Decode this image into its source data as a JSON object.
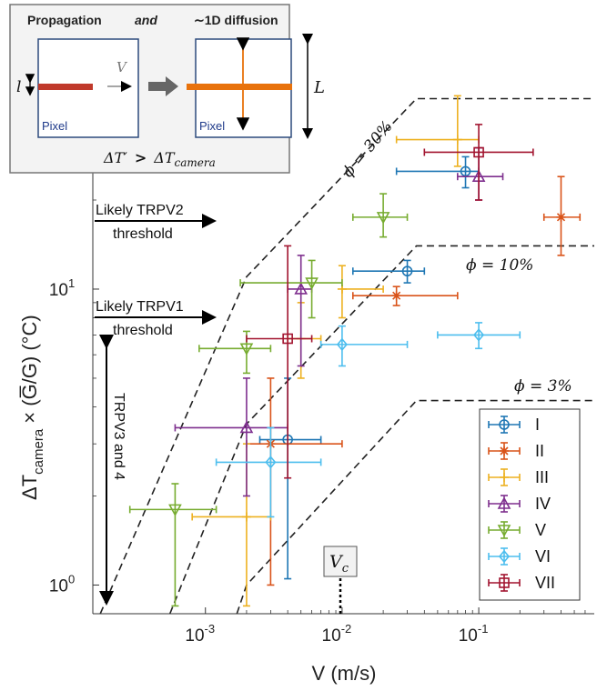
{
  "chart_data": {
    "type": "scatter",
    "x_scale": "log",
    "y_scale": "log",
    "xlim": [
      0.00015,
      0.7
    ],
    "ylim": [
      0.8,
      55
    ],
    "xlabel": "V (m/s)",
    "ylabel_main": "ΔT",
    "ylabel_sub": "camera",
    "ylabel_rest": " × (G̅/G) (°C)",
    "x_ticks": [
      {
        "value": 0.001,
        "label": "10",
        "exp": "-3"
      },
      {
        "value": 0.01,
        "label": "10",
        "exp": "-2"
      },
      {
        "value": 0.1,
        "label": "10",
        "exp": "-1"
      }
    ],
    "y_ticks": [
      {
        "value": 1,
        "label": "10",
        "exp": "0"
      },
      {
        "value": 10,
        "label": "10",
        "exp": "1"
      }
    ],
    "legend_position": "bottom-right",
    "series": [
      {
        "name": "I",
        "color": "#1f77b4",
        "marker": "circle",
        "points": [
          {
            "x": 0.004,
            "y": 3.1,
            "xerr": [
              0.0025,
              0.007
            ],
            "yerr": [
              1.05,
              5.0
            ]
          },
          {
            "x": 0.03,
            "y": 11.5,
            "xerr": [
              0.012,
              0.04
            ],
            "yerr": [
              10.5,
              12.5
            ]
          },
          {
            "x": 0.08,
            "y": 25.0,
            "xerr": [
              0.025,
              0.1
            ],
            "yerr": [
              22.0,
              28.0
            ]
          }
        ]
      },
      {
        "name": "II",
        "color": "#d95319",
        "marker": "asterisk",
        "points": [
          {
            "x": 0.003,
            "y": 3.0,
            "xerr": [
              0.002,
              0.01
            ],
            "yerr": [
              1.0,
              5.0
            ]
          },
          {
            "x": 0.025,
            "y": 9.5,
            "xerr": [
              0.012,
              0.07
            ],
            "yerr": [
              8.8,
              10.2
            ]
          },
          {
            "x": 0.4,
            "y": 17.5,
            "xerr": [
              0.3,
              0.55
            ],
            "yerr": [
              13.0,
              24.0
            ]
          }
        ]
      },
      {
        "name": "III",
        "color": "#edb120",
        "marker": "cross",
        "points": [
          {
            "x": 0.002,
            "y": 1.7,
            "xerr": [
              0.0008,
              0.003
            ],
            "yerr": [
              0.85,
              3.0
            ]
          },
          {
            "x": 0.005,
            "y": 6.8,
            "xerr": [
              0.004,
              0.007
            ],
            "yerr": [
              5.0,
              9.0
            ]
          },
          {
            "x": 0.01,
            "y": 10.0,
            "xerr": [
              0.01,
              0.02
            ],
            "yerr": [
              8.0,
              12.0
            ]
          },
          {
            "x": 0.07,
            "y": 32.0,
            "xerr": [
              0.025,
              0.1
            ],
            "yerr": [
              26.0,
              45.0
            ]
          }
        ]
      },
      {
        "name": "IV",
        "color": "#7e2f8e",
        "marker": "triangle-up",
        "points": [
          {
            "x": 0.002,
            "y": 3.4,
            "xerr": [
              0.0006,
              0.004
            ],
            "yerr": [
              2.0,
              5.0
            ]
          },
          {
            "x": 0.005,
            "y": 10.0,
            "xerr": [
              0.004,
              0.006
            ],
            "yerr": [
              5.5,
              13.0
            ]
          },
          {
            "x": 0.1,
            "y": 24.0,
            "xerr": [
              0.07,
              0.15
            ],
            "yerr": [
              20.0,
              30.0
            ]
          }
        ]
      },
      {
        "name": "V",
        "color": "#77ac30",
        "marker": "triangle-down",
        "points": [
          {
            "x": 0.0006,
            "y": 1.8,
            "xerr": [
              0.00028,
              0.0012
            ],
            "yerr": [
              0.85,
              2.2
            ]
          },
          {
            "x": 0.002,
            "y": 6.3,
            "xerr": [
              0.0009,
              0.003
            ],
            "yerr": [
              5.2,
              7.2
            ]
          },
          {
            "x": 0.006,
            "y": 10.5,
            "xerr": [
              0.0018,
              0.01
            ],
            "yerr": [
              8.0,
              12.5
            ]
          },
          {
            "x": 0.02,
            "y": 17.5,
            "xerr": [
              0.012,
              0.03
            ],
            "yerr": [
              15.0,
              21.0
            ]
          }
        ]
      },
      {
        "name": "VI",
        "color": "#4dbeee",
        "marker": "diamond",
        "points": [
          {
            "x": 0.003,
            "y": 2.6,
            "xerr": [
              0.0012,
              0.007
            ],
            "yerr": [
              1.7,
              3.4
            ]
          },
          {
            "x": 0.01,
            "y": 6.5,
            "xerr": [
              0.007,
              0.03
            ],
            "yerr": [
              5.5,
              7.5
            ]
          },
          {
            "x": 0.1,
            "y": 7.0,
            "xerr": [
              0.05,
              0.2
            ],
            "yerr": [
              6.3,
              7.7
            ]
          }
        ]
      },
      {
        "name": "VII",
        "color": "#a2142f",
        "marker": "square",
        "points": [
          {
            "x": 0.004,
            "y": 6.8,
            "xerr": [
              0.002,
              0.006
            ],
            "yerr": [
              2.3,
              14.0
            ]
          },
          {
            "x": 0.1,
            "y": 29.0,
            "xerr": [
              0.04,
              0.25
            ],
            "yerr": [
              20.0,
              36.0
            ]
          }
        ]
      }
    ],
    "threshold_curves": [
      {
        "label": "ϕ = 30%",
        "points": [
          [
            0.00017,
            0.8
          ],
          [
            0.002,
            11.0
          ],
          [
            0.035,
            44.0
          ],
          [
            0.7,
            44.0
          ]
        ]
      },
      {
        "label": "ϕ = 10%",
        "points": [
          [
            0.00055,
            0.8
          ],
          [
            0.002,
            3.5
          ],
          [
            0.035,
            14.0
          ],
          [
            0.7,
            14.0
          ]
        ]
      },
      {
        "label": "ϕ = 3%",
        "points": [
          [
            0.0017,
            0.8
          ],
          [
            0.002,
            1.0
          ],
          [
            0.035,
            4.2
          ],
          [
            0.7,
            4.2
          ]
        ]
      }
    ]
  },
  "annotations": {
    "trpv2": {
      "line1": "Likely TRPV2",
      "line2": "threshold"
    },
    "trpv1": {
      "line1": "Likely TRPV1",
      "line2": "threshold"
    },
    "trpv34": "TRPV3 and 4",
    "vc_main": "V",
    "vc_sub": "c"
  },
  "inset": {
    "title_a": "Propagation",
    "title_and": "and",
    "title_b": "∼1D diffusion",
    "pixel_label": "Pixel",
    "l_label": "l",
    "V_label": "V",
    "L_label": "L",
    "cond_left": "ΔT′",
    "cond_op": ">",
    "cond_right_main": "ΔT",
    "cond_right_sub": "camera",
    "colors": {
      "short_bar": "#c0392b",
      "long_bar": "#e8720c",
      "pixel_border": "#2c4a7c"
    }
  }
}
